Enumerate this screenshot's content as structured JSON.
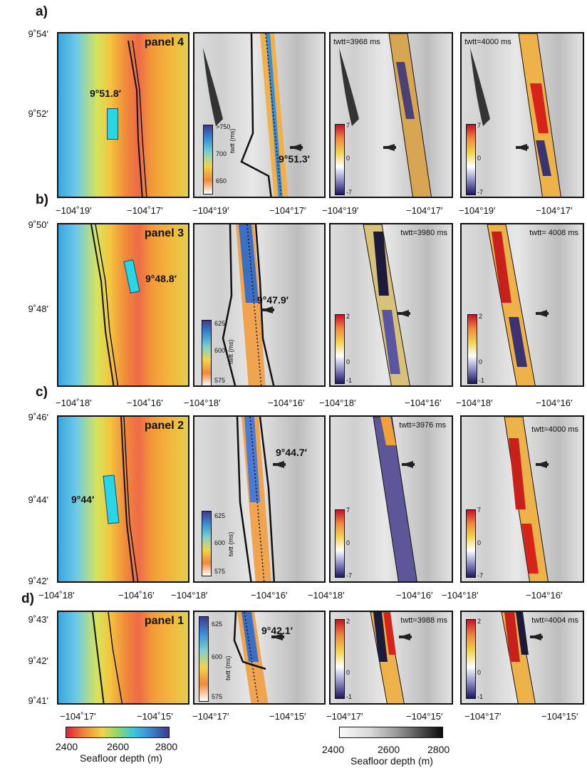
{
  "row_labels": [
    "a)",
    "b)",
    "c)",
    "d)"
  ],
  "rows": [
    {
      "lat_ticks": [
        "9˚54'",
        "9˚52'"
      ],
      "lon_ticks_depth": [
        "−104˚19'",
        "−104˚17'"
      ],
      "lon_ticks_twtt": [
        "−104°19′",
        "−104°17′"
      ],
      "lon_ticks_amp1": [
        "−104°19′",
        "−104°17′"
      ],
      "lon_ticks_amp2": [
        "−104°19′",
        "−104°17′"
      ],
      "panel_label": "panel 4",
      "depth_annotation": "9°51.8′",
      "twtt_annotation": "9°51.3′",
      "twtt_amp1": "twtt=3968 ms",
      "twtt_amp2": "twtt=4000 ms",
      "cbar_twtt": [
        ">750",
        "700",
        "650"
      ],
      "cbar_amp": [
        "7",
        "0",
        "-7"
      ]
    },
    {
      "lat_ticks": [
        "9˚50'",
        "9˚48'"
      ],
      "lon_ticks_depth": [
        "−104˚18'",
        "−104˚16'"
      ],
      "lon_ticks_twtt": [
        "−104°18′",
        "−104°16′"
      ],
      "lon_ticks_amp1": [
        "−104°18′",
        "−104°16′"
      ],
      "lon_ticks_amp2": [
        "−104°18′",
        "−104°16′"
      ],
      "panel_label": "panel 3",
      "depth_annotation": "9°48.8′",
      "twtt_annotation": "9°47.9′",
      "twtt_amp1": "twtt=3980 ms",
      "twtt_amp2": "twtt= 4008 ms",
      "cbar_twtt": [
        "625",
        "600",
        "575"
      ],
      "cbar_amp": [
        "2",
        "0",
        "-1"
      ]
    },
    {
      "lat_ticks": [
        "9˚46'",
        "9˚44'",
        "9˚42'"
      ],
      "lon_ticks_depth": [
        "−104˚18'",
        "−104˚16'"
      ],
      "lon_ticks_twtt": [
        "−104°18′",
        "−104°16′"
      ],
      "lon_ticks_amp1": [
        "−104°18′",
        "−104°16′"
      ],
      "lon_ticks_amp2": [
        "−104°18′",
        "−104°16′"
      ],
      "panel_label": "panel 2",
      "depth_annotation": "9°44′",
      "twtt_annotation": "9°44.7′",
      "twtt_amp1": "twtt=3976 ms",
      "twtt_amp2": "twtt=4000 ms",
      "cbar_twtt": [
        "625",
        "600",
        "575"
      ],
      "cbar_amp": [
        "7",
        "0",
        "-7"
      ]
    },
    {
      "lat_ticks": [
        "9˚43'",
        "9˚42'",
        "9˚41'"
      ],
      "lon_ticks_depth": [
        "−104˚17'",
        "−104˚15'"
      ],
      "lon_ticks_twtt": [
        "−104°17′",
        "−104°15′"
      ],
      "lon_ticks_amp1": [
        "−104°17′",
        "−104°15′"
      ],
      "lon_ticks_amp2": [
        "−104°17′",
        "−104°15′"
      ],
      "panel_label": "panel 1",
      "depth_annotation": "",
      "twtt_annotation": "9°42.1′",
      "twtt_amp1": "twtt=3988 ms",
      "twtt_amp2": "twtt=4004 ms",
      "cbar_twtt": [
        "625",
        "600",
        "575"
      ],
      "cbar_amp": [
        "2",
        "0",
        "-1"
      ]
    }
  ],
  "cbar_twtt_unit": "twtt (ms)",
  "legend_color": {
    "ticks": [
      "2400",
      "2600",
      "2800"
    ],
    "title": "Seafloor depth (m)"
  },
  "legend_gray": {
    "ticks": [
      "2400",
      "2600",
      "2800"
    ],
    "title": "Seafloor depth (m)"
  },
  "colors": {
    "accent_cyan": "#29d6e6",
    "frame": "#111111"
  }
}
